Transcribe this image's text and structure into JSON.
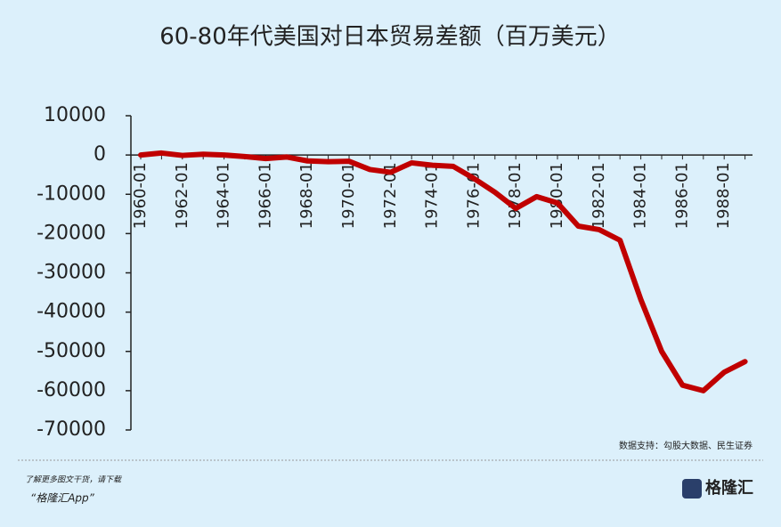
{
  "chart_data": {
    "type": "line",
    "title": "60-80年代美国对日本贸易差额（百万美元）",
    "categories": [
      "1960-01",
      null,
      "1962-01",
      null,
      "1964-01",
      null,
      "1966-01",
      null,
      "1968-01",
      null,
      "1970-01",
      null,
      "1972-01",
      null,
      "1974-01",
      null,
      "1976-01",
      null,
      "1978-01",
      null,
      "1980-01",
      null,
      "1982-01",
      null,
      "1984-01",
      null,
      "1986-01",
      null,
      "1988-01",
      null
    ],
    "series": [
      {
        "name": "美国对日本贸易差额",
        "color": "#c00000",
        "values": [
          0,
          500,
          -100,
          200,
          0,
          -400,
          -900,
          -500,
          -1500,
          -1700,
          -1600,
          -3700,
          -4400,
          -2000,
          -2600,
          -2900,
          -6000,
          -9500,
          -13600,
          -10600,
          -12200,
          -18100,
          -19000,
          -21700,
          -36800,
          -50000,
          -58600,
          -60000,
          -55300,
          -52600
        ]
      }
    ],
    "ylim": [
      -70000,
      10000
    ],
    "yticks": [
      10000,
      0,
      -10000,
      -20000,
      -30000,
      -40000,
      -50000,
      -60000,
      -70000
    ],
    "source": "数据支持：勾股大数据、民生证券",
    "footer": {
      "line1": "了解更多图文干货，请下载",
      "line2": "“格隆汇App”",
      "logo": "格隆汇"
    }
  }
}
